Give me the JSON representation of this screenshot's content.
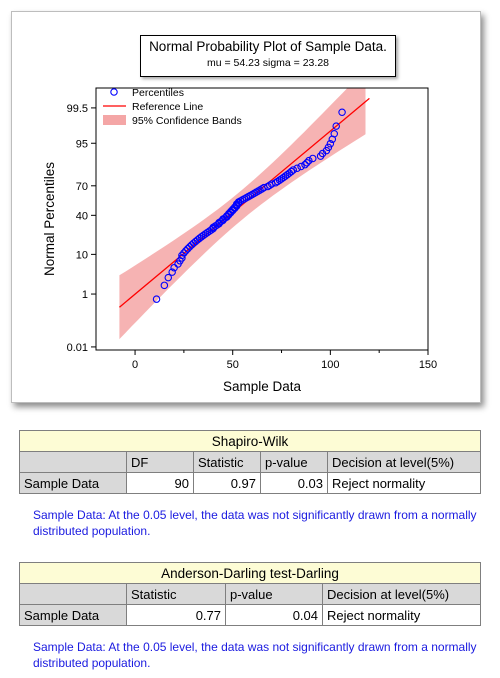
{
  "chart_data": {
    "type": "scatter",
    "title": "Normal Probability Plot of Sample Data.",
    "subtitle": "mu = 54.23  sigma = 23.28",
    "xlabel": "Sample Data",
    "ylabel": "Normal Percentiles",
    "xlim": [
      -20,
      150
    ],
    "x_ticks": [
      0,
      50,
      100,
      150
    ],
    "y_ticks": [
      0.01,
      1,
      10,
      40,
      70,
      95,
      99.5
    ],
    "y_scale": "normal-probability",
    "legend_placement": "top-left",
    "legend": [
      {
        "label": "Percentiles",
        "kind": "marker",
        "color": "#0000ff"
      },
      {
        "label": "Reference Line",
        "kind": "line",
        "color": "#ff0000"
      },
      {
        "label": "95% Confidence Bands",
        "kind": "band",
        "color": "#f4a6a6"
      }
    ],
    "mu": 54.23,
    "sigma": 23.28,
    "band_x": [
      -8,
      118
    ],
    "n": 90,
    "points_x": [
      11,
      15,
      17,
      19,
      20,
      22,
      23,
      24,
      24,
      25,
      26,
      27,
      28,
      29,
      30,
      31,
      32,
      33,
      34,
      35,
      36,
      37,
      38,
      39,
      40,
      40,
      41,
      42,
      43,
      43,
      44,
      45,
      45,
      46,
      47,
      47,
      48,
      48,
      49,
      49,
      50,
      50,
      51,
      51,
      52,
      52,
      52,
      53,
      53,
      54,
      55,
      56,
      57,
      58,
      59,
      60,
      61,
      62,
      63,
      64,
      65,
      66,
      68,
      69,
      70,
      72,
      73,
      74,
      75,
      76,
      77,
      78,
      79,
      80,
      81,
      83,
      85,
      87,
      88,
      89,
      91,
      95,
      96,
      98,
      99,
      100,
      101,
      102,
      103,
      106
    ]
  },
  "shapiro_wilk": {
    "title": "Shapiro-Wilk",
    "columns": [
      "DF",
      "Statistic",
      "p-value",
      "Decision at level(5%)"
    ],
    "row_label": "Sample Data",
    "values": [
      "90",
      "0.97",
      "0.03",
      "Reject normality"
    ],
    "note": "Sample Data: At the 0.05 level, the data was not significantly drawn from a normally distributed population."
  },
  "anderson_darling": {
    "title": "Anderson-Darling test-Darling",
    "columns": [
      "Statistic",
      "p-value",
      "Decision at level(5%)"
    ],
    "row_label": "Sample Data",
    "values": [
      "0.77",
      "0.04",
      "Reject normality"
    ],
    "note": "Sample Data: At the 0.05 level, the data was not significantly drawn from a normally distributed population."
  }
}
